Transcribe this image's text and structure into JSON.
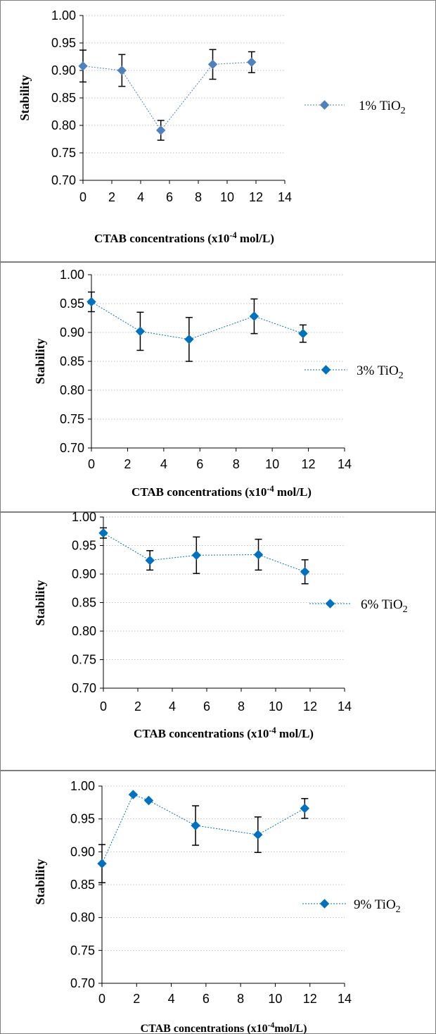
{
  "chart_data": [
    {
      "type": "scatter",
      "xlabel_main": "CTAB concentrations (x10",
      "xlabel_sup": "-4",
      "xlabel_tail": " mol/L)",
      "ylabel": "Stability",
      "xlim": [
        0,
        14
      ],
      "ylim": [
        0.7,
        1.0
      ],
      "xticks": [
        "0",
        "2",
        "4",
        "6",
        "8",
        "10",
        "12",
        "14"
      ],
      "yticks": [
        "0.70",
        "0.75",
        "0.80",
        "0.85",
        "0.90",
        "0.95",
        "1.00"
      ],
      "grid": "horizontal dotted",
      "legend": "right",
      "legend_label_main": "1% TiO",
      "legend_label_sub": "2",
      "color": "#4f81bd",
      "series": [
        {
          "x": [
            0,
            2.7,
            5.4,
            9.0,
            11.7
          ],
          "y": [
            0.908,
            0.9,
            0.791,
            0.911,
            0.915
          ],
          "error": [
            0.029,
            0.029,
            0.018,
            0.027,
            0.019
          ]
        }
      ]
    },
    {
      "type": "scatter",
      "xlabel_main": "CTAB concentrations (x10",
      "xlabel_sup": "-4",
      "xlabel_tail": " mol/L)",
      "ylabel": "Stability",
      "xlim": [
        0,
        14
      ],
      "ylim": [
        0.7,
        1.0
      ],
      "xticks": [
        "0",
        "2",
        "4",
        "6",
        "8",
        "10",
        "12",
        "14"
      ],
      "yticks": [
        "0.70",
        "0.75",
        "0.80",
        "0.85",
        "0.90",
        "0.95",
        "1.00"
      ],
      "grid": "horizontal dotted",
      "legend": "right",
      "legend_label_main": "3% TiO",
      "legend_label_sub": "2",
      "color": "#0070c0",
      "series": [
        {
          "x": [
            0,
            2.7,
            5.4,
            9.0,
            11.7
          ],
          "y": [
            0.953,
            0.902,
            0.888,
            0.928,
            0.898
          ],
          "error": [
            0.017,
            0.033,
            0.038,
            0.03,
            0.015
          ]
        }
      ]
    },
    {
      "type": "scatter",
      "xlabel_main": "CTAB concentrations (x10",
      "xlabel_sup": "-4",
      "xlabel_tail": " mol/L)",
      "ylabel": "Stability",
      "xlim": [
        0,
        14
      ],
      "ylim": [
        0.7,
        1.0
      ],
      "xticks": [
        "0",
        "2",
        "4",
        "6",
        "8",
        "10",
        "12",
        "14"
      ],
      "yticks": [
        "0.70",
        "0.75",
        "0.80",
        "0.85",
        "0.90",
        "0.95",
        "1.00"
      ],
      "grid": "horizontal dotted",
      "legend": "right",
      "legend_label_main": "6% TiO",
      "legend_label_sub": "2",
      "color": "#0070c0",
      "series": [
        {
          "x": [
            0,
            2.7,
            5.4,
            9.0,
            11.7
          ],
          "y": [
            0.972,
            0.924,
            0.933,
            0.934,
            0.904
          ],
          "error": [
            0.009,
            0.017,
            0.032,
            0.027,
            0.021
          ]
        }
      ]
    },
    {
      "type": "scatter",
      "xlabel_main": "CTAB concentrations (x10",
      "xlabel_sup": "-4",
      "xlabel_tail": "mol/L)",
      "ylabel": "Stability",
      "xlim": [
        0,
        14
      ],
      "ylim": [
        0.7,
        1.0
      ],
      "xticks": [
        "0",
        "2",
        "4",
        "6",
        "8",
        "10",
        "12",
        "14"
      ],
      "yticks": [
        "0.70",
        "0.75",
        "0.80",
        "0.85",
        "0.90",
        "0.95",
        "1.00"
      ],
      "grid": "horizontal dotted",
      "legend": "right",
      "legend_label_main": "9% TiO",
      "legend_label_sub": "2",
      "color": "#0070c0",
      "series": [
        {
          "x": [
            0,
            1.8,
            2.7,
            5.4,
            9.0,
            11.7
          ],
          "y": [
            0.882,
            0.987,
            0.978,
            0.94,
            0.926,
            0.966
          ],
          "error": [
            0.029,
            0.0,
            0.0,
            0.03,
            0.027,
            0.015
          ]
        }
      ]
    }
  ]
}
